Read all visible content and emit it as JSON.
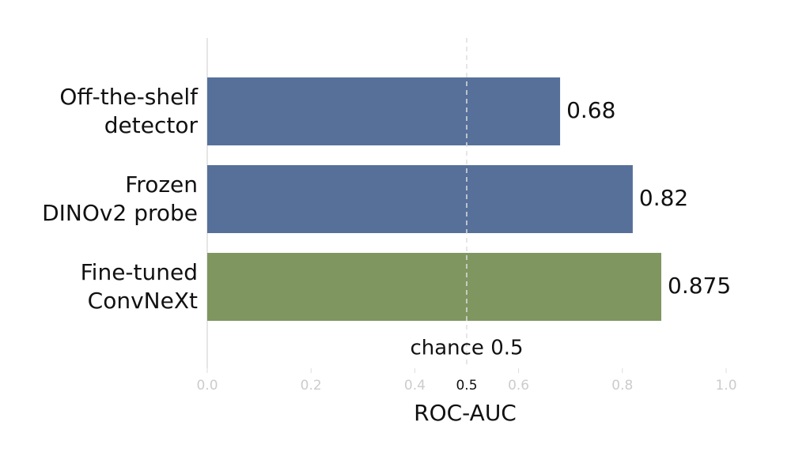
{
  "chart_data": {
    "type": "bar",
    "orientation": "horizontal",
    "categories": [
      "Off-the-shelf\ndetector",
      "Frozen\nDINOv2 probe",
      "Fine-tuned\nConvNeXt"
    ],
    "values": [
      0.68,
      0.82,
      0.875
    ],
    "colors": [
      "#56709a",
      "#56709a",
      "#7f9660"
    ],
    "xlabel": "ROC-AUC",
    "xlim": [
      0,
      1
    ],
    "xticks": [
      {
        "value": 0,
        "label": "0.0"
      },
      0.2,
      0.4,
      0.6,
      0.8,
      {
        "value": 1,
        "label": "1.0"
      }
    ],
    "reference_line": {
      "value": 0.5,
      "label": "chance 0.5"
    }
  }
}
